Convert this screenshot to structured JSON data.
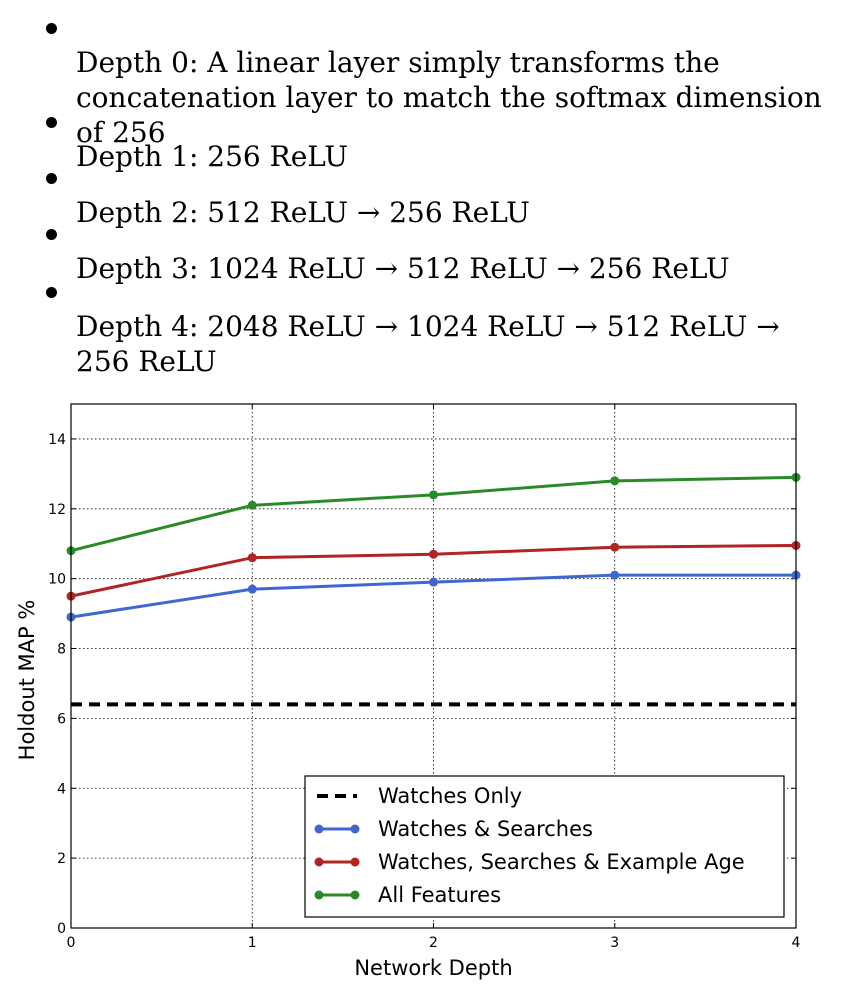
{
  "bullets": [
    "Depth 0: A linear layer simply transforms the concatenation layer to match the softmax dimension of 256",
    "Depth 1: 256 ReLU",
    "Depth 2: 512 ReLU → 256 ReLU",
    "Depth 3: 1024 ReLU → 512 ReLU → 256 ReLU",
    "Depth 4: 2048 ReLU → 1024 ReLU → 512 ReLU → 256 ReLU"
  ],
  "chart_data": {
    "type": "line",
    "xlabel": "Network Depth",
    "ylabel": "Holdout MAP %",
    "x": [
      0,
      1,
      2,
      3,
      4
    ],
    "xlim": [
      0,
      4
    ],
    "ylim": [
      0,
      15
    ],
    "xticks": [
      "0",
      "1",
      "2",
      "3",
      "4"
    ],
    "yticks": [
      "0",
      "2",
      "4",
      "6",
      "8",
      "10",
      "12",
      "14"
    ],
    "grid": true,
    "legend_position": "bottom-right",
    "series": [
      {
        "name": "Watches Only",
        "color": "#000000",
        "dashed": true,
        "markers": false,
        "values": [
          6.4,
          6.4,
          6.4,
          6.4,
          6.4
        ]
      },
      {
        "name": "Watches & Searches",
        "color": "#3f67cf",
        "dashed": false,
        "markers": true,
        "values": [
          8.9,
          9.7,
          9.9,
          10.1,
          10.1
        ]
      },
      {
        "name": "Watches, Searches & Example Age",
        "color": "#b02424",
        "dashed": false,
        "markers": true,
        "values": [
          9.5,
          10.6,
          10.7,
          10.9,
          10.95
        ]
      },
      {
        "name": "All Features",
        "color": "#2a8a2a",
        "dashed": false,
        "markers": true,
        "values": [
          10.8,
          12.1,
          12.4,
          12.8,
          12.9
        ]
      }
    ]
  }
}
